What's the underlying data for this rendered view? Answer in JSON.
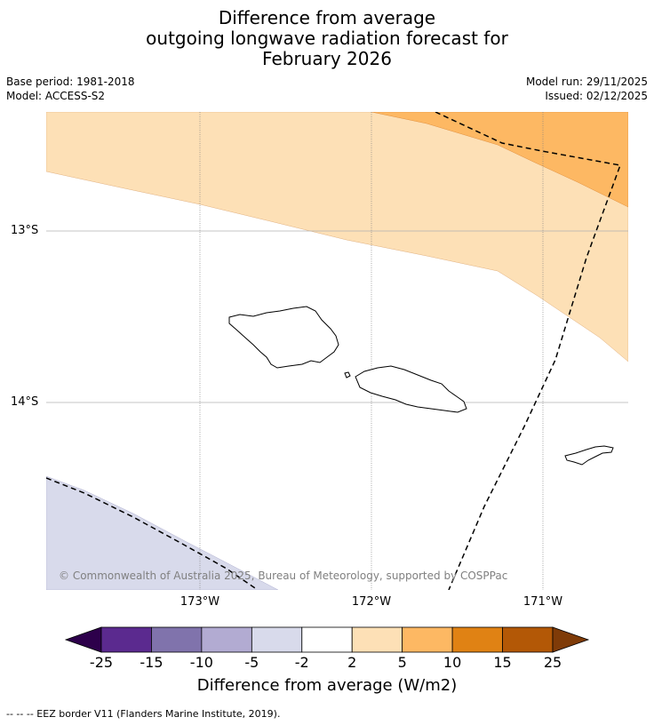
{
  "header": {
    "title_line1": "Difference from average",
    "title_line2": "outgoing longwave radiation forecast for",
    "title_line3": "February 2026",
    "base_period": "Base period: 1981-2018",
    "model": "Model: ACCESS-S2",
    "model_run": "Model run: 29/11/2025",
    "issued": "Issued: 02/12/2025"
  },
  "map": {
    "latitude_labels": [
      "13°S",
      "14°S"
    ],
    "longitude_labels": [
      "173°W",
      "172°W",
      "171°W"
    ],
    "copyright": "© Commonwealth of Australia 2025, Bureau of Meteorology, supported by COSPPac",
    "regions": [
      {
        "name": "2 to 5",
        "color": "#fde0b6"
      },
      {
        "name": "5 to 10",
        "color": "#fdb863"
      },
      {
        "name": "-5 to -2",
        "color": "#d8daeb"
      }
    ]
  },
  "colorbar": {
    "ticks": [
      "-25",
      "-15",
      "-10",
      "-5",
      "-2",
      "2",
      "5",
      "10",
      "15",
      "25"
    ],
    "colors": [
      "#5b2a8f",
      "#8073ac",
      "#b2abd2",
      "#d8daeb",
      "#ffffff",
      "#fde0b6",
      "#fdb863",
      "#e08214",
      "#b35806"
    ],
    "under_color": "#2d004b",
    "over_color": "#7f3b08",
    "title": "Difference from average (W/m2)"
  },
  "footnote": "--  --  -- EEZ border V11 (Flanders Marine Institute, 2019)."
}
